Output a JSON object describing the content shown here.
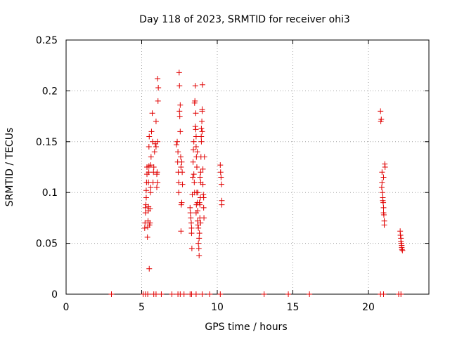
{
  "chart_data": {
    "type": "scatter",
    "title": "Day 118 of 2023, SRMTID for receiver ohi3",
    "xlabel": "GPS time / hours",
    "ylabel": "SRMTID / TECUs",
    "xlim": [
      0,
      24
    ],
    "ylim": [
      0,
      0.25
    ],
    "x_ticks": [
      0,
      5,
      10,
      15,
      20
    ],
    "x_tick_labels": [
      "0",
      "5",
      "10",
      "15",
      "20"
    ],
    "y_ticks": [
      0,
      0.05,
      0.1,
      0.15,
      0.2,
      0.25
    ],
    "y_tick_labels": [
      "0",
      "0.05",
      "0.1",
      "0.15",
      "0.2",
      "0.25"
    ],
    "grid": true,
    "marker": "+",
    "color": "#e00000",
    "series": [
      {
        "name": "ohi3",
        "points": [
          [
            3.0,
            0.0
          ],
          [
            5.1,
            0.0
          ],
          [
            5.25,
            0.0
          ],
          [
            5.4,
            0.0
          ],
          [
            5.8,
            0.0
          ],
          [
            5.95,
            0.0
          ],
          [
            6.3,
            0.0
          ],
          [
            7.0,
            0.0
          ],
          [
            7.4,
            0.0
          ],
          [
            7.55,
            0.0
          ],
          [
            7.8,
            0.0
          ],
          [
            8.2,
            0.0
          ],
          [
            8.3,
            0.0
          ],
          [
            8.6,
            0.0
          ],
          [
            9.0,
            0.0
          ],
          [
            9.5,
            0.0
          ],
          [
            10.2,
            0.0
          ],
          [
            13.1,
            0.0
          ],
          [
            14.7,
            0.0
          ],
          [
            16.1,
            0.0
          ],
          [
            20.8,
            0.0
          ],
          [
            21.0,
            0.0
          ],
          [
            22.0,
            0.0
          ],
          [
            22.15,
            0.0
          ],
          [
            5.2,
            0.065
          ],
          [
            5.22,
            0.07
          ],
          [
            5.25,
            0.08
          ],
          [
            5.25,
            0.085
          ],
          [
            5.28,
            0.088
          ],
          [
            5.3,
            0.095
          ],
          [
            5.3,
            0.102
          ],
          [
            5.32,
            0.11
          ],
          [
            5.35,
            0.118
          ],
          [
            5.35,
            0.125
          ],
          [
            5.38,
            0.056
          ],
          [
            5.4,
            0.066
          ],
          [
            5.42,
            0.072
          ],
          [
            5.44,
            0.082
          ],
          [
            5.45,
            0.086
          ],
          [
            5.45,
            0.11
          ],
          [
            5.47,
            0.12
          ],
          [
            5.48,
            0.126
          ],
          [
            5.48,
            0.145
          ],
          [
            5.5,
            0.155
          ],
          [
            5.5,
            0.025
          ],
          [
            5.52,
            0.068
          ],
          [
            5.55,
            0.07
          ],
          [
            5.55,
            0.084
          ],
          [
            5.58,
            0.1
          ],
          [
            5.6,
            0.105
          ],
          [
            5.6,
            0.127
          ],
          [
            5.62,
            0.135
          ],
          [
            5.65,
            0.16
          ],
          [
            5.7,
            0.178
          ],
          [
            5.72,
            0.15
          ],
          [
            5.75,
            0.11
          ],
          [
            5.78,
            0.12
          ],
          [
            5.8,
            0.125
          ],
          [
            5.85,
            0.14
          ],
          [
            5.9,
            0.148
          ],
          [
            5.95,
            0.17
          ],
          [
            6.0,
            0.118
          ],
          [
            6.02,
            0.12
          ],
          [
            6.05,
            0.15
          ],
          [
            6.08,
            0.19
          ],
          [
            6.1,
            0.203
          ],
          [
            6.05,
            0.212
          ],
          [
            6.0,
            0.105
          ],
          [
            6.05,
            0.11
          ],
          [
            5.95,
            0.145
          ],
          [
            7.3,
            0.147
          ],
          [
            7.35,
            0.15
          ],
          [
            7.38,
            0.13
          ],
          [
            7.4,
            0.14
          ],
          [
            7.42,
            0.12
          ],
          [
            7.45,
            0.11
          ],
          [
            7.45,
            0.1
          ],
          [
            7.48,
            0.218
          ],
          [
            7.5,
            0.205
          ],
          [
            7.5,
            0.18
          ],
          [
            7.52,
            0.175
          ],
          [
            7.55,
            0.186
          ],
          [
            7.55,
            0.16
          ],
          [
            7.58,
            0.135
          ],
          [
            7.6,
            0.125
          ],
          [
            7.6,
            0.062
          ],
          [
            7.62,
            0.088
          ],
          [
            7.65,
            0.09
          ],
          [
            7.65,
            0.13
          ],
          [
            7.68,
            0.12
          ],
          [
            7.7,
            0.108
          ],
          [
            8.2,
            0.085
          ],
          [
            8.22,
            0.08
          ],
          [
            8.25,
            0.075
          ],
          [
            8.28,
            0.07
          ],
          [
            8.3,
            0.065
          ],
          [
            8.3,
            0.06
          ],
          [
            8.32,
            0.045
          ],
          [
            8.35,
            0.098
          ],
          [
            8.38,
            0.115
          ],
          [
            8.4,
            0.13
          ],
          [
            8.42,
            0.142
          ],
          [
            8.45,
            0.15
          ],
          [
            8.45,
            0.118
          ],
          [
            8.48,
            0.11
          ],
          [
            8.5,
            0.1
          ],
          [
            8.5,
            0.188
          ],
          [
            8.52,
            0.19
          ],
          [
            8.55,
            0.205
          ],
          [
            8.55,
            0.165
          ],
          [
            8.58,
            0.162
          ],
          [
            8.6,
            0.155
          ],
          [
            8.6,
            0.145
          ],
          [
            8.62,
            0.135
          ],
          [
            8.65,
            0.125
          ],
          [
            8.65,
            0.1
          ],
          [
            8.68,
            0.09
          ],
          [
            8.7,
            0.082
          ],
          [
            8.7,
            0.072
          ],
          [
            8.72,
            0.068
          ],
          [
            8.75,
            0.065
          ],
          [
            8.75,
            0.05
          ],
          [
            8.78,
            0.045
          ],
          [
            8.8,
            0.038
          ],
          [
            8.8,
            0.055
          ],
          [
            8.82,
            0.06
          ],
          [
            8.85,
            0.075
          ],
          [
            8.85,
            0.088
          ],
          [
            8.88,
            0.095
          ],
          [
            8.9,
            0.11
          ],
          [
            8.9,
            0.12
          ],
          [
            8.92,
            0.135
          ],
          [
            8.95,
            0.15
          ],
          [
            8.95,
            0.163
          ],
          [
            8.98,
            0.17
          ],
          [
            9.0,
            0.18
          ],
          [
            9.0,
            0.182
          ],
          [
            9.02,
            0.206
          ],
          [
            9.05,
            0.123
          ],
          [
            9.05,
            0.108
          ],
          [
            9.08,
            0.098
          ],
          [
            9.1,
            0.095
          ],
          [
            9.1,
            0.085
          ],
          [
            9.12,
            0.075
          ],
          [
            9.15,
            0.135
          ],
          [
            8.6,
            0.08
          ],
          [
            8.62,
            0.088
          ],
          [
            8.58,
            0.178
          ],
          [
            8.68,
            0.14
          ],
          [
            8.72,
            0.1
          ],
          [
            8.82,
            0.09
          ],
          [
            8.86,
            0.115
          ],
          [
            8.9,
            0.07
          ],
          [
            8.94,
            0.155
          ],
          [
            9.0,
            0.16
          ],
          [
            10.2,
            0.127
          ],
          [
            10.22,
            0.12
          ],
          [
            10.25,
            0.115
          ],
          [
            10.28,
            0.108
          ],
          [
            10.3,
            0.092
          ],
          [
            10.3,
            0.088
          ],
          [
            20.8,
            0.18
          ],
          [
            20.82,
            0.17
          ],
          [
            20.85,
            0.172
          ],
          [
            20.9,
            0.12
          ],
          [
            20.9,
            0.11
          ],
          [
            20.92,
            0.1
          ],
          [
            20.95,
            0.095
          ],
          [
            20.95,
            0.092
          ],
          [
            20.98,
            0.09
          ],
          [
            21.0,
            0.085
          ],
          [
            21.0,
            0.08
          ],
          [
            21.02,
            0.078
          ],
          [
            21.05,
            0.072
          ],
          [
            21.05,
            0.068
          ],
          [
            21.08,
            0.128
          ],
          [
            21.1,
            0.125
          ],
          [
            20.88,
            0.105
          ],
          [
            21.0,
            0.115
          ],
          [
            22.1,
            0.062
          ],
          [
            22.12,
            0.058
          ],
          [
            22.15,
            0.055
          ],
          [
            22.15,
            0.052
          ],
          [
            22.18,
            0.05
          ],
          [
            22.2,
            0.048
          ],
          [
            22.2,
            0.046
          ],
          [
            22.22,
            0.044
          ],
          [
            22.25,
            0.043
          ]
        ]
      }
    ]
  }
}
